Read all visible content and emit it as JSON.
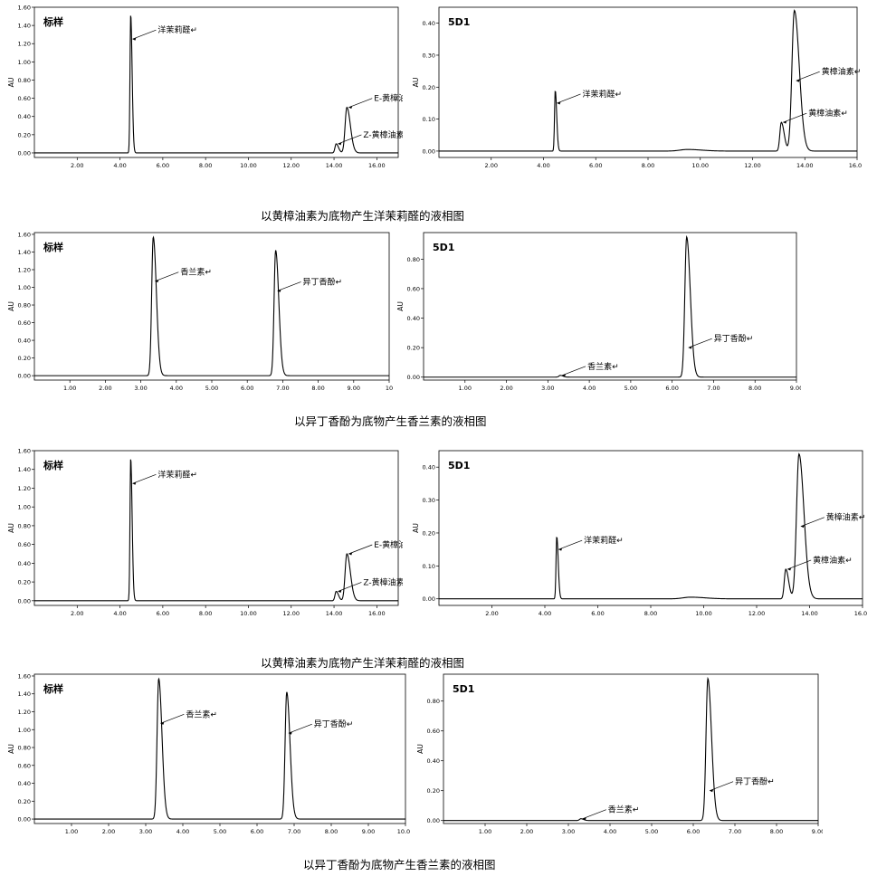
{
  "captions": [
    "以黄樟油素为底物产生洋茉莉醛的液相图",
    "以异丁香酚为底物产生香兰素的液相图",
    "以黄樟油素为底物产生洋茉莉醛的液相图",
    "以异丁香酚为底物产生香兰素的液相图"
  ],
  "chart_data": [
    {
      "type": "line",
      "title": "标样",
      "ylabel": "AU",
      "xlim": [
        0,
        17
      ],
      "ylim": [
        -0.05,
        1.6
      ],
      "xticks": [
        "2.00",
        "4.00",
        "6.00",
        "8.00",
        "10.00",
        "12.00",
        "14.00",
        "16.00"
      ],
      "yticks": [
        "0.00",
        "0.20",
        "0.40",
        "0.60",
        "0.80",
        "1.00",
        "1.20",
        "1.40",
        "1.60"
      ],
      "peaks": [
        [
          4.5,
          1.52,
          0.06
        ],
        [
          14.1,
          0.1,
          0.1
        ],
        [
          14.6,
          0.5,
          0.15
        ]
      ],
      "annotations": [
        {
          "text": "洋茉莉醛",
          "x": 4.5,
          "y": 1.25
        },
        {
          "text": "Z-黄樟油素",
          "x": 14.1,
          "y": 0.1
        },
        {
          "text": "E-黄樟油素",
          "x": 14.6,
          "y": 0.5
        }
      ]
    },
    {
      "type": "line",
      "title": "5D1",
      "ylabel": "AU",
      "xlim": [
        0,
        16
      ],
      "ylim": [
        -0.02,
        0.45
      ],
      "xticks": [
        "2.00",
        "4.00",
        "6.00",
        "8.00",
        "10.00",
        "12.00",
        "14.00",
        "16.00"
      ],
      "yticks": [
        "0.00",
        "0.10",
        "0.20",
        "0.30",
        "0.40"
      ],
      "peaks": [
        [
          4.45,
          0.19,
          0.05
        ],
        [
          9.5,
          0.005,
          0.5
        ],
        [
          13.1,
          0.09,
          0.1
        ],
        [
          13.6,
          0.44,
          0.17
        ]
      ],
      "annotations": [
        {
          "text": "洋茉莉醛",
          "x": 4.45,
          "y": 0.15
        },
        {
          "text": "黄樟油素",
          "x": 13.1,
          "y": 0.09
        },
        {
          "text": "黄樟油素",
          "x": 13.6,
          "y": 0.22
        }
      ]
    },
    {
      "type": "line",
      "title": "标样",
      "ylabel": "AU",
      "xlim": [
        0,
        10
      ],
      "ylim": [
        -0.05,
        1.62
      ],
      "xticks": [
        "1.00",
        "2.00",
        "3.00",
        "4.00",
        "5.00",
        "6.00",
        "7.00",
        "8.00",
        "9.00",
        "10"
      ],
      "yticks": [
        "0.00",
        "0.20",
        "0.40",
        "0.60",
        "0.80",
        "1.00",
        "1.20",
        "1.40",
        "1.60"
      ],
      "peaks": [
        [
          3.35,
          1.57,
          0.08
        ],
        [
          6.8,
          1.42,
          0.08
        ]
      ],
      "annotations": [
        {
          "text": "香兰素",
          "x": 3.35,
          "y": 1.07
        },
        {
          "text": "异丁香酚",
          "x": 6.8,
          "y": 0.96
        }
      ]
    },
    {
      "type": "line",
      "title": "5D1",
      "ylabel": "AU",
      "xlim": [
        0,
        9
      ],
      "ylim": [
        -0.02,
        0.98
      ],
      "xticks": [
        "1.00",
        "2.00",
        "3.00",
        "4.00",
        "5.00",
        "6.00",
        "7.00",
        "8.00",
        "9.00"
      ],
      "yticks": [
        "0.00",
        "0.20",
        "0.40",
        "0.60",
        "0.80"
      ],
      "peaks": [
        [
          3.3,
          0.012,
          0.06
        ],
        [
          6.35,
          0.95,
          0.08
        ]
      ],
      "annotations": [
        {
          "text": "香兰素",
          "x": 3.3,
          "y": 0.012
        },
        {
          "text": "异丁香酚",
          "x": 6.35,
          "y": 0.2
        }
      ]
    },
    {
      "type": "line",
      "title": "标样",
      "ylabel": "AU",
      "xlim": [
        0,
        17
      ],
      "ylim": [
        -0.05,
        1.6
      ],
      "xticks": [
        "2.00",
        "4.00",
        "6.00",
        "8.00",
        "10.00",
        "12.00",
        "14.00",
        "16.00"
      ],
      "yticks": [
        "0.00",
        "0.20",
        "0.40",
        "0.60",
        "0.80",
        "1.00",
        "1.20",
        "1.40",
        "1.60"
      ],
      "peaks": [
        [
          4.5,
          1.52,
          0.06
        ],
        [
          14.1,
          0.1,
          0.1
        ],
        [
          14.6,
          0.5,
          0.15
        ]
      ],
      "annotations": [
        {
          "text": "洋茉莉醛",
          "x": 4.5,
          "y": 1.25
        },
        {
          "text": "Z-黄樟油素",
          "x": 14.1,
          "y": 0.1
        },
        {
          "text": "E-黄樟油素",
          "x": 14.6,
          "y": 0.5
        }
      ]
    },
    {
      "type": "line",
      "title": "5D1",
      "ylabel": "AU",
      "xlim": [
        0,
        16
      ],
      "ylim": [
        -0.02,
        0.45
      ],
      "xticks": [
        "2.00",
        "4.00",
        "6.00",
        "8.00",
        "10.00",
        "12.00",
        "14.00",
        "16.00"
      ],
      "yticks": [
        "0.00",
        "0.10",
        "0.20",
        "0.30",
        "0.40"
      ],
      "peaks": [
        [
          4.45,
          0.19,
          0.05
        ],
        [
          9.5,
          0.005,
          0.5
        ],
        [
          13.1,
          0.09,
          0.1
        ],
        [
          13.6,
          0.44,
          0.17
        ]
      ],
      "annotations": [
        {
          "text": "洋茉莉醛",
          "x": 4.45,
          "y": 0.15
        },
        {
          "text": "黄樟油素",
          "x": 13.1,
          "y": 0.09
        },
        {
          "text": "黄樟油素",
          "x": 13.6,
          "y": 0.22
        }
      ]
    },
    {
      "type": "line",
      "title": "标样",
      "ylabel": "AU",
      "xlim": [
        0,
        10
      ],
      "ylim": [
        -0.05,
        1.62
      ],
      "xticks": [
        "1.00",
        "2.00",
        "3.00",
        "4.00",
        "5.00",
        "6.00",
        "7.00",
        "8.00",
        "9.00",
        "10.00"
      ],
      "yticks": [
        "0.00",
        "0.20",
        "0.40",
        "0.60",
        "0.80",
        "1.00",
        "1.20",
        "1.40",
        "1.60"
      ],
      "peaks": [
        [
          3.35,
          1.57,
          0.08
        ],
        [
          6.8,
          1.42,
          0.08
        ]
      ],
      "annotations": [
        {
          "text": "香兰素",
          "x": 3.35,
          "y": 1.07
        },
        {
          "text": "异丁香酚",
          "x": 6.8,
          "y": 0.96
        }
      ]
    },
    {
      "type": "line",
      "title": "5D1",
      "ylabel": "AU",
      "xlim": [
        0,
        9
      ],
      "ylim": [
        -0.02,
        0.98
      ],
      "xticks": [
        "1.00",
        "2.00",
        "3.00",
        "4.00",
        "5.00",
        "6.00",
        "7.00",
        "8.00",
        "9.00"
      ],
      "yticks": [
        "0.00",
        "0.20",
        "0.40",
        "0.60",
        "0.80"
      ],
      "peaks": [
        [
          3.3,
          0.012,
          0.06
        ],
        [
          6.35,
          0.95,
          0.08
        ]
      ],
      "annotations": [
        {
          "text": "香兰素",
          "x": 3.3,
          "y": 0.012
        },
        {
          "text": "异丁香酚",
          "x": 6.35,
          "y": 0.2
        }
      ]
    }
  ]
}
